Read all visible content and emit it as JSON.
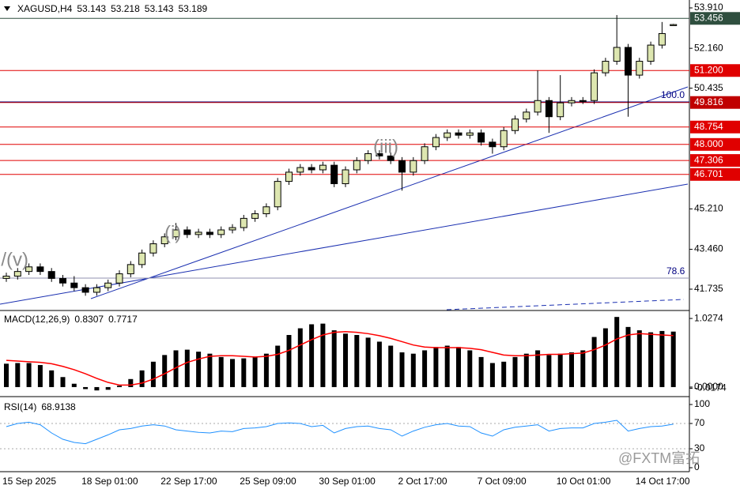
{
  "chart_data": [
    {
      "type": "candlestick",
      "title": "XAGUSD,H4",
      "header_values": [
        "53.143",
        "53.218",
        "53.143",
        "53.189"
      ],
      "categories": [
        "15 Sep 2025",
        null,
        null,
        null,
        null,
        null,
        null,
        "18 Sep 01:00",
        null,
        null,
        null,
        null,
        null,
        null,
        "22 Sep 17:00",
        null,
        null,
        null,
        null,
        null,
        null,
        "25 Sep 09:00",
        null,
        null,
        null,
        null,
        null,
        null,
        "30 Sep 01:00",
        null,
        null,
        null,
        null,
        null,
        null,
        "2 Oct 17:00",
        null,
        null,
        null,
        null,
        null,
        null,
        "7 Oct 09:00",
        null,
        null,
        null,
        null,
        null,
        null,
        "10 Oct 01:00",
        null,
        null,
        null,
        null,
        null,
        null,
        "14 Oct 17:00",
        null,
        null,
        null
      ],
      "open": [
        42.2,
        42.3,
        42.5,
        42.7,
        42.5,
        42.2,
        42.0,
        41.8,
        41.6,
        41.8,
        42.0,
        42.4,
        42.8,
        43.3,
        43.7,
        44.0,
        44.3,
        44.1,
        44.2,
        44.1,
        44.3,
        44.4,
        44.8,
        45.0,
        45.3,
        46.4,
        46.8,
        47.0,
        46.9,
        47.1,
        46.3,
        46.9,
        47.3,
        47.6,
        47.5,
        47.3,
        46.8,
        47.3,
        47.9,
        48.3,
        48.5,
        48.4,
        48.5,
        48.1,
        47.9,
        48.6,
        49.1,
        49.4,
        49.9,
        49.2,
        49.8,
        49.9,
        49.9,
        51.1,
        51.6,
        52.2,
        51.0,
        51.6,
        52.3,
        53.143
      ],
      "high": [
        42.45,
        42.65,
        42.85,
        42.85,
        42.65,
        42.35,
        42.3,
        41.95,
        41.95,
        42.15,
        42.55,
        42.95,
        43.45,
        43.85,
        44.15,
        44.6,
        44.45,
        44.35,
        44.35,
        44.45,
        44.55,
        44.95,
        45.15,
        45.45,
        46.55,
        46.95,
        47.15,
        47.15,
        47.25,
        47.25,
        47.05,
        47.45,
        47.75,
        47.75,
        47.65,
        47.45,
        47.45,
        48.05,
        48.45,
        48.65,
        48.65,
        48.65,
        48.65,
        48.25,
        48.75,
        49.25,
        49.55,
        51.2,
        50.05,
        51.0,
        50.05,
        50.05,
        51.25,
        51.75,
        53.6,
        52.35,
        51.75,
        52.45,
        53.3,
        53.218
      ],
      "low": [
        42.05,
        42.15,
        42.35,
        42.35,
        42.05,
        41.85,
        41.65,
        41.45,
        41.45,
        41.65,
        41.85,
        42.25,
        42.65,
        43.15,
        43.55,
        43.85,
        43.95,
        43.95,
        43.95,
        43.95,
        44.15,
        44.25,
        44.65,
        44.85,
        45.15,
        46.25,
        46.65,
        46.75,
        46.75,
        46.15,
        46.15,
        46.75,
        47.15,
        47.35,
        47.15,
        46.0,
        46.65,
        47.15,
        47.75,
        48.15,
        48.25,
        48.25,
        47.95,
        47.6,
        47.75,
        48.45,
        48.95,
        49.25,
        48.5,
        49.05,
        49.65,
        49.75,
        49.75,
        50.95,
        51.45,
        49.2,
        50.85,
        51.45,
        52.15,
        53.143
      ],
      "close": [
        42.3,
        42.5,
        42.7,
        42.5,
        42.2,
        42.0,
        41.8,
        41.6,
        41.8,
        42.0,
        42.4,
        42.8,
        43.3,
        43.7,
        44.0,
        44.3,
        44.1,
        44.2,
        44.1,
        44.3,
        44.4,
        44.8,
        45.0,
        45.3,
        46.4,
        46.8,
        47.0,
        46.9,
        47.1,
        46.3,
        46.9,
        47.3,
        47.6,
        47.5,
        47.3,
        46.8,
        47.3,
        47.9,
        48.3,
        48.5,
        48.4,
        48.5,
        48.1,
        47.9,
        48.6,
        49.1,
        49.4,
        49.9,
        49.2,
        49.8,
        49.9,
        49.9,
        51.1,
        51.6,
        52.2,
        51.0,
        51.6,
        52.3,
        52.8,
        53.189
      ],
      "bull_color": "#dde6b0",
      "bear_color": "#000000",
      "ylim": [
        40.846,
        54.252
      ],
      "yticks": [
        {
          "value": 53.91,
          "label": "53.910"
        },
        {
          "value": 52.16,
          "label": "52.160"
        },
        {
          "value": 50.435,
          "label": "50.435"
        },
        {
          "value": 45.21,
          "label": "45.210"
        },
        {
          "value": 43.46,
          "label": "43.460"
        },
        {
          "value": 41.735,
          "label": "41.735"
        }
      ],
      "levels": [
        {
          "value": 53.456,
          "label": "53.456",
          "color": "#2f4f3f"
        },
        {
          "value": 51.2,
          "label": "51.200",
          "color": "#e00000"
        },
        {
          "value": 49.816,
          "label": "49.816",
          "color": "#c00000"
        },
        {
          "value": 48.754,
          "label": "48.754",
          "color": "#e00000"
        },
        {
          "value": 48.0,
          "label": "48.000",
          "color": "#e00000"
        },
        {
          "value": 47.306,
          "label": "47.306",
          "color": "#e00000"
        },
        {
          "value": 46.701,
          "label": "46.701",
          "color": "#e00000"
        }
      ],
      "annotations": [
        "i/(v)",
        "(i)",
        "(iii)",
        "100.0",
        "78.6"
      ]
    },
    {
      "type": "macd",
      "title": "MACD(12,26,9)",
      "header_values": [
        "0.8307",
        "0.7717"
      ],
      "values": [
        0.35,
        0.36,
        0.36,
        0.33,
        0.25,
        0.15,
        0.05,
        -0.03,
        -0.05,
        -0.04,
        0.02,
        0.12,
        0.25,
        0.38,
        0.48,
        0.55,
        0.56,
        0.53,
        0.5,
        0.45,
        0.42,
        0.43,
        0.45,
        0.5,
        0.62,
        0.78,
        0.88,
        0.94,
        0.95,
        0.85,
        0.8,
        0.78,
        0.74,
        0.68,
        0.62,
        0.52,
        0.5,
        0.55,
        0.6,
        0.62,
        0.6,
        0.55,
        0.45,
        0.36,
        0.38,
        0.45,
        0.5,
        0.55,
        0.48,
        0.5,
        0.52,
        0.55,
        0.75,
        0.88,
        1.05,
        0.9,
        0.85,
        0.82,
        0.84,
        0.8307
      ],
      "color": "#000000",
      "signal": [
        0.4,
        0.39,
        0.38,
        0.37,
        0.35,
        0.31,
        0.26,
        0.2,
        0.13,
        0.07,
        0.03,
        0.03,
        0.06,
        0.12,
        0.2,
        0.29,
        0.37,
        0.42,
        0.46,
        0.47,
        0.47,
        0.46,
        0.45,
        0.46,
        0.49,
        0.55,
        0.63,
        0.71,
        0.78,
        0.82,
        0.83,
        0.82,
        0.8,
        0.77,
        0.73,
        0.68,
        0.63,
        0.6,
        0.59,
        0.59,
        0.59,
        0.58,
        0.56,
        0.52,
        0.48,
        0.47,
        0.47,
        0.48,
        0.49,
        0.49,
        0.5,
        0.51,
        0.56,
        0.63,
        0.72,
        0.78,
        0.8,
        0.79,
        0.78,
        0.7717
      ],
      "signal_color": "#ff0000",
      "ylim": [
        -0.119,
        1.123
      ],
      "yticks": [
        {
          "value": 1.0274,
          "label": "1.0274"
        },
        {
          "value": 0,
          "label": "0.0000"
        },
        {
          "value": -0.0174,
          "label": "-0.0174"
        }
      ]
    },
    {
      "type": "rsi",
      "title": "RSI(14)",
      "header_values": [
        "68.9138"
      ],
      "values": [
        65,
        70,
        72,
        68,
        55,
        45,
        40,
        38,
        45,
        52,
        60,
        62,
        66,
        68,
        66,
        60,
        58,
        56,
        55,
        58,
        57,
        62,
        63,
        65,
        70,
        71,
        70,
        65,
        67,
        55,
        62,
        65,
        66,
        62,
        60,
        50,
        58,
        64,
        68,
        70,
        66,
        65,
        55,
        50,
        60,
        64,
        66,
        68,
        58,
        62,
        63,
        63,
        70,
        72,
        75,
        58,
        62,
        65,
        66,
        68.9138
      ],
      "color": "#1e90ff",
      "ylim": [
        -6.25,
        111.25
      ],
      "yticks": [
        100,
        70,
        30,
        0
      ],
      "levels": [
        70,
        30
      ]
    }
  ],
  "watermark": "@FXTM富拓"
}
